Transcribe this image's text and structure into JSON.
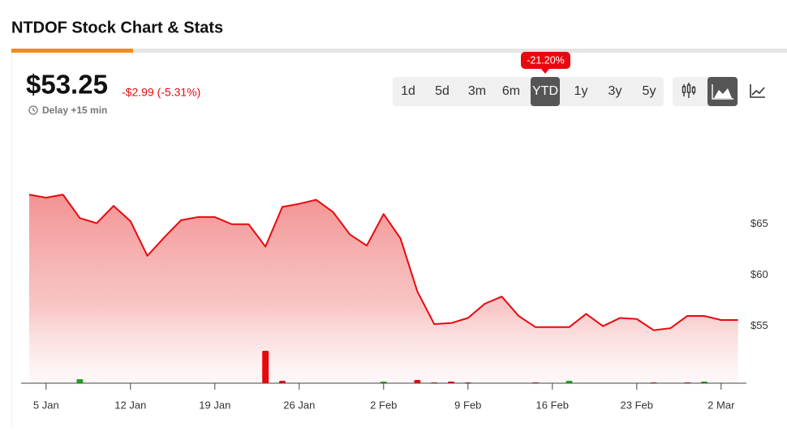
{
  "header": {
    "title": "NTDOF Stock Chart & Stats",
    "price": "$53.25",
    "change": "-$2.99 (-5.31%)",
    "delay": "Delay +15 min",
    "ranges": [
      "1d",
      "5d",
      "3m",
      "6m",
      "YTD",
      "1y",
      "3y",
      "5y"
    ],
    "active_range": "YTD",
    "range_change": "-21.20%"
  },
  "chart_data": {
    "type": "area",
    "categories": [
      null,
      "5 Jan",
      null,
      null,
      null,
      null,
      "12 Jan",
      null,
      null,
      null,
      null,
      "19 Jan",
      null,
      null,
      null,
      null,
      "26 Jan",
      null,
      null,
      null,
      null,
      "2 Feb",
      null,
      null,
      null,
      null,
      "9 Feb",
      null,
      null,
      null,
      null,
      "16 Feb",
      null,
      null,
      null,
      null,
      "23 Feb",
      null,
      null,
      null,
      null,
      "2 Mar",
      null
    ],
    "series": [
      {
        "color": "#e8090e",
        "values": [
          67.9,
          67.6,
          67.9,
          65.6,
          65.1,
          66.8,
          65.3,
          61.9,
          63.7,
          65.4,
          65.7,
          65.7,
          65.0,
          65.0,
          62.8,
          66.7,
          67.0,
          67.4,
          66.2,
          64.0,
          62.9,
          66.0,
          63.6,
          58.4,
          55.2,
          55.3,
          55.8,
          57.2,
          57.9,
          56.0,
          54.9,
          54.9,
          54.9,
          56.2,
          55.0,
          55.8,
          55.7,
          54.6,
          54.8,
          56.0,
          56.0,
          55.6,
          55.6
        ]
      }
    ],
    "volume": {
      "values": [
        null,
        null,
        null,
        5,
        null,
        null,
        null,
        null,
        null,
        null,
        null,
        null,
        null,
        null,
        40,
        3,
        null,
        null,
        null,
        null,
        null,
        2,
        null,
        4,
        1,
        2,
        1,
        null,
        null,
        null,
        1,
        null,
        3,
        null,
        null,
        null,
        null,
        1,
        null,
        1,
        2,
        null,
        null
      ],
      "colors": [
        null,
        null,
        null,
        "#22a322",
        null,
        null,
        null,
        null,
        null,
        null,
        null,
        null,
        null,
        null,
        "#e8090e",
        "#e8090e",
        null,
        null,
        null,
        null,
        null,
        "#22a322",
        null,
        "#e8090e",
        "#e8090e",
        "#e8090e",
        "#e8090e",
        null,
        null,
        null,
        "#e8090e",
        null,
        "#22a322",
        null,
        null,
        null,
        null,
        "#e8090e",
        null,
        "#e8090e",
        "#22a322",
        null,
        null
      ],
      "vlim": [
        0,
        100
      ]
    },
    "ylim": [
      49.4,
      71.1
    ],
    "yticks": [
      {
        "value": 55,
        "label": "$55"
      },
      {
        "value": 60,
        "label": "$60"
      },
      {
        "value": 65,
        "label": "$65"
      }
    ],
    "grid": false
  }
}
